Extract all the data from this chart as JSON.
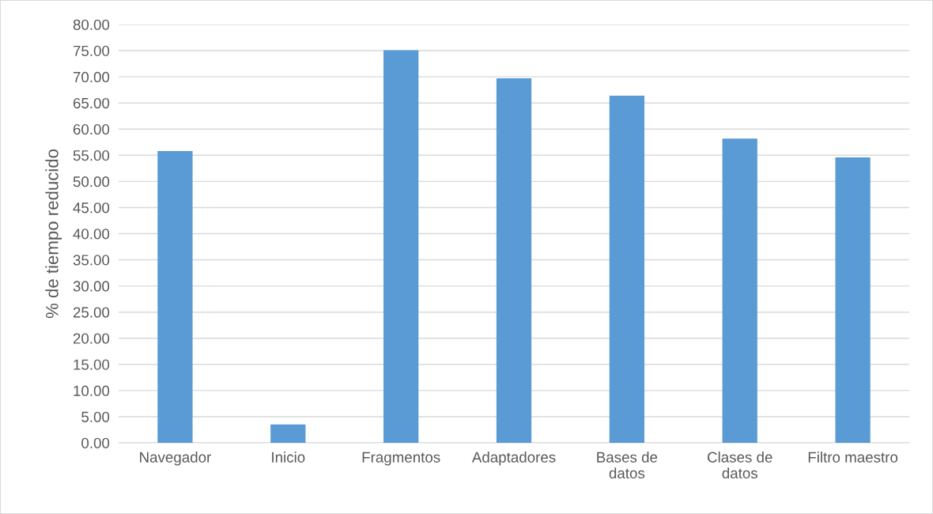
{
  "chart_data": {
    "type": "bar",
    "ylabel": "% de tiempo reducido",
    "categories": [
      "Navegador",
      "Inicio",
      "Fragmentos",
      "Adaptadores",
      "Bases de\ndatos",
      "Clases de\ndatos",
      "Filtro maestro"
    ],
    "values": [
      55.8,
      3.5,
      75.1,
      69.7,
      66.4,
      58.2,
      54.6
    ],
    "color": "#5b9bd5",
    "ylim": [
      0,
      80
    ],
    "yticks": [
      {
        "value": 0,
        "label": "0.00"
      },
      {
        "value": 5,
        "label": "5.00"
      },
      {
        "value": 10,
        "label": "10.00"
      },
      {
        "value": 15,
        "label": "15.00"
      },
      {
        "value": 20,
        "label": "20.00"
      },
      {
        "value": 25,
        "label": "25.00"
      },
      {
        "value": 30,
        "label": "30.00"
      },
      {
        "value": 35,
        "label": "35.00"
      },
      {
        "value": 40,
        "label": "40.00"
      },
      {
        "value": 45,
        "label": "45.00"
      },
      {
        "value": 50,
        "label": "50.00"
      },
      {
        "value": 55,
        "label": "55.00"
      },
      {
        "value": 60,
        "label": "60.00"
      },
      {
        "value": 65,
        "label": "65.00"
      },
      {
        "value": 70,
        "label": "70.00"
      },
      {
        "value": 75,
        "label": "75.00"
      },
      {
        "value": 80,
        "label": "80.00"
      }
    ],
    "grid": "y"
  }
}
